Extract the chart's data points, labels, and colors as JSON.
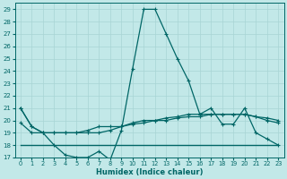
{
  "xlabel": "Humidex (Indice chaleur)",
  "ylabel": "",
  "xlim": [
    -0.5,
    23.5
  ],
  "ylim": [
    17,
    29.5
  ],
  "yticks": [
    17,
    18,
    19,
    20,
    21,
    22,
    23,
    24,
    25,
    26,
    27,
    28,
    29
  ],
  "xticks": [
    0,
    1,
    2,
    3,
    4,
    5,
    6,
    7,
    8,
    9,
    10,
    11,
    12,
    13,
    14,
    15,
    16,
    17,
    18,
    19,
    20,
    21,
    22,
    23
  ],
  "bg_color": "#c2e8e8",
  "grid_color": "#a8d4d4",
  "line_color": "#006666",
  "line1_x": [
    0,
    1,
    2,
    3,
    4,
    5,
    6,
    7,
    8,
    9,
    10,
    11,
    12,
    13,
    14,
    15,
    16,
    17,
    18,
    19,
    20,
    21,
    22,
    23
  ],
  "line1_y": [
    21.0,
    19.5,
    19.0,
    18.0,
    17.2,
    17.0,
    17.0,
    17.5,
    16.8,
    19.2,
    24.2,
    29.0,
    29.0,
    27.0,
    25.0,
    23.2,
    20.5,
    21.0,
    19.7,
    19.7,
    21.0,
    19.0,
    18.5,
    18.0
  ],
  "line2_x": [
    0,
    1,
    2,
    3,
    4,
    5,
    6,
    7,
    8,
    9,
    10,
    11,
    12,
    13,
    14,
    15,
    16,
    17,
    18,
    19,
    20,
    21,
    22,
    23
  ],
  "line2_y": [
    19.8,
    19.0,
    19.0,
    19.0,
    19.0,
    19.0,
    19.0,
    19.0,
    19.2,
    19.5,
    19.7,
    19.8,
    20.0,
    20.0,
    20.2,
    20.3,
    20.3,
    20.5,
    20.5,
    20.5,
    20.5,
    20.3,
    20.2,
    20.0
  ],
  "line3_x": [
    0,
    1,
    2,
    3,
    4,
    5,
    6,
    7,
    8,
    9,
    10,
    11,
    12,
    13,
    14,
    15,
    16,
    17,
    18,
    19,
    20,
    21,
    22,
    23
  ],
  "line3_y": [
    21.0,
    19.5,
    19.0,
    19.0,
    19.0,
    19.0,
    19.2,
    19.5,
    19.5,
    19.5,
    19.8,
    20.0,
    20.0,
    20.2,
    20.3,
    20.5,
    20.5,
    20.5,
    20.5,
    20.5,
    20.5,
    20.3,
    20.0,
    19.8
  ],
  "line4_x": [
    0,
    1,
    2,
    3,
    4,
    5,
    6,
    7,
    8,
    9,
    10,
    11,
    12,
    13,
    14,
    15,
    16,
    17,
    18,
    19,
    20,
    21,
    22,
    23
  ],
  "line4_y": [
    18.0,
    18.0,
    18.0,
    18.0,
    18.0,
    18.0,
    18.0,
    18.0,
    18.0,
    18.0,
    18.0,
    18.0,
    18.0,
    18.0,
    18.0,
    18.0,
    18.0,
    18.0,
    18.0,
    18.0,
    18.0,
    18.0,
    18.0,
    18.0
  ]
}
